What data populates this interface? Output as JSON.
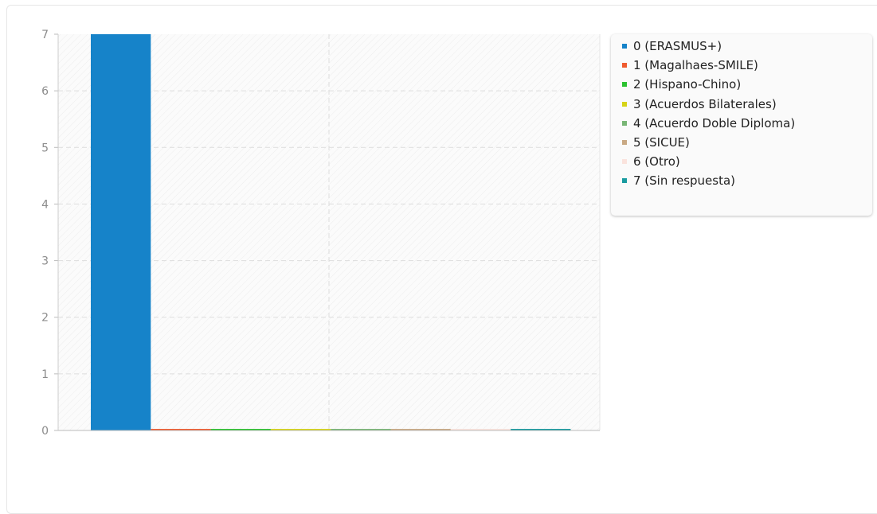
{
  "chart_data": {
    "type": "bar",
    "categories": [
      "0 (ERASMUS+)",
      "1 (Magalhaes-SMILE)",
      "2 (Hispano-Chino)",
      "3 (Acuerdos Bilaterales)",
      "4 (Acuerdo Doble Diploma)",
      "5 (SICUE)",
      "6 (Otro)",
      "7 (Sin respuesta)"
    ],
    "values": [
      7,
      0,
      0,
      0,
      0,
      0,
      0,
      0
    ],
    "colors": [
      "#1683c9",
      "#ef5b2f",
      "#2cc230",
      "#d6d417",
      "#79b676",
      "#c9a984",
      "#fae3dd",
      "#1a9ba0"
    ],
    "ylim": [
      0,
      7
    ],
    "yticks": [
      "0",
      "1",
      "2",
      "3",
      "4",
      "5",
      "6",
      "7"
    ],
    "title": "",
    "xlabel": "",
    "ylabel": "",
    "grid": true,
    "legend_position": "right"
  }
}
